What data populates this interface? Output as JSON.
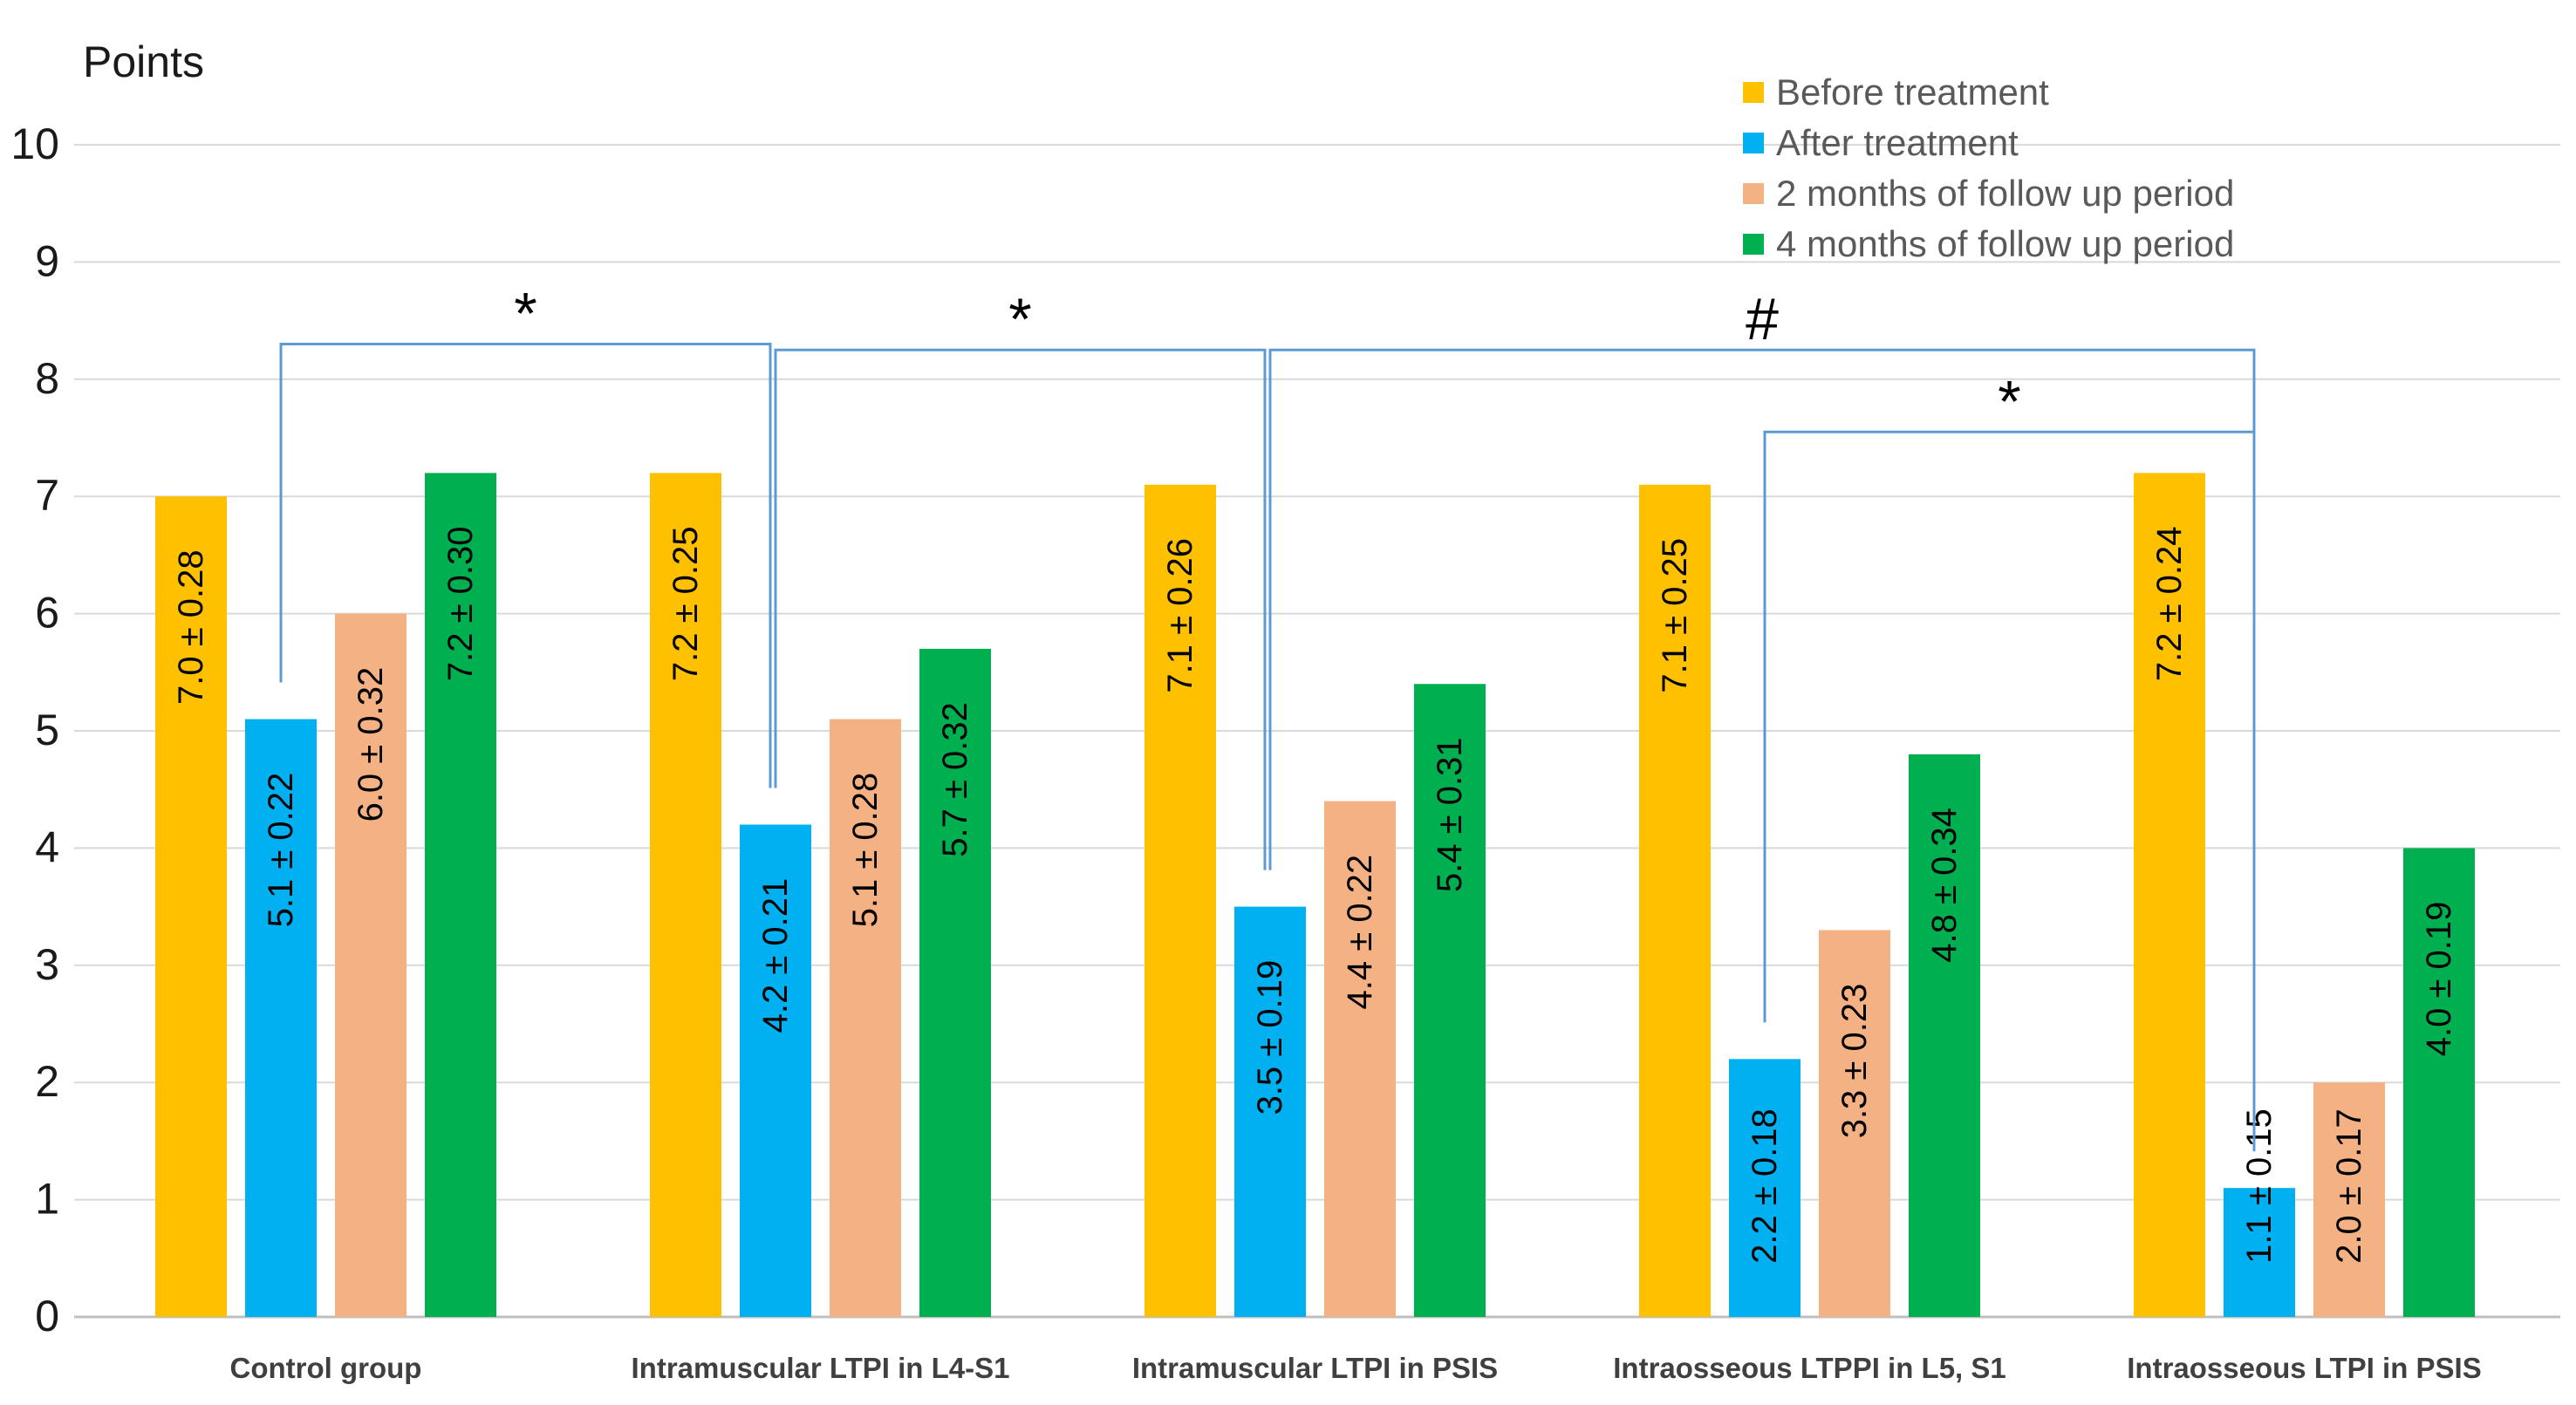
{
  "chart_data": {
    "type": "bar",
    "ylabel": "Points",
    "ylim": [
      0,
      10
    ],
    "yticks": [
      "0",
      "1",
      "2",
      "3",
      "4",
      "5",
      "6",
      "7",
      "8",
      "9",
      "10"
    ],
    "grid": true,
    "legend_position": "top-right",
    "categories": [
      "Control group",
      "Intramuscular LTPI in L4-S1",
      "Intramuscular LTPI in PSIS",
      "Intraosseous LTPPI in L5, S1",
      "Intraosseous LTPI in PSIS"
    ],
    "series": [
      {
        "name": "Before treatment",
        "color": "#FFC000",
        "values": [
          7.0,
          7.2,
          7.1,
          7.1,
          7.2
        ],
        "labels": [
          "7.0 ± 0.28",
          "7.2 ± 0.25",
          "7.1 ± 0.26",
          "7.1 ± 0.25",
          "7.2 ± 0.24"
        ]
      },
      {
        "name": "After treatment",
        "color": "#00B0F0",
        "values": [
          5.1,
          4.2,
          3.5,
          2.2,
          1.1
        ],
        "labels": [
          "5.1 ± 0.22",
          "4.2 ± 0.21",
          "3.5 ± 0.19",
          "2.2 ± 0.18",
          "1.1 ± 0.15"
        ]
      },
      {
        "name": "2  months of follow up period",
        "color": "#F4B183",
        "values": [
          6.0,
          5.1,
          4.4,
          3.3,
          2.0
        ],
        "labels": [
          "6.0 ± 0.32",
          "5.1 ± 0.28",
          "4.4 ± 0.22",
          "3.3 ± 0.23",
          "2.0 ± 0.17"
        ]
      },
      {
        "name": "4 months of follow up period",
        "color": "#00B050",
        "values": [
          7.2,
          5.7,
          5.4,
          4.8,
          4.0
        ],
        "labels": [
          "7.2 ± 0.30",
          "5.7 ± 0.32",
          "5.4 ± 0.31",
          "4.8 ± 0.34",
          "4.0 ± 0.19"
        ]
      }
    ],
    "annotations": [
      {
        "mark": "*",
        "from_category": 0,
        "to_category": 1,
        "series": 1,
        "level": 8.3
      },
      {
        "mark": "*",
        "from_category": 1,
        "to_category": 2,
        "series": 1,
        "level": 8.25
      },
      {
        "mark": "#",
        "from_category": 2,
        "to_category": 4,
        "series": 1,
        "level": 8.25
      },
      {
        "mark": "*",
        "from_category": 3,
        "to_category": 4,
        "series": 1,
        "level": 7.55
      }
    ],
    "bracket_color": "#5B9BD5",
    "grid_color": "#D9D9D9"
  }
}
